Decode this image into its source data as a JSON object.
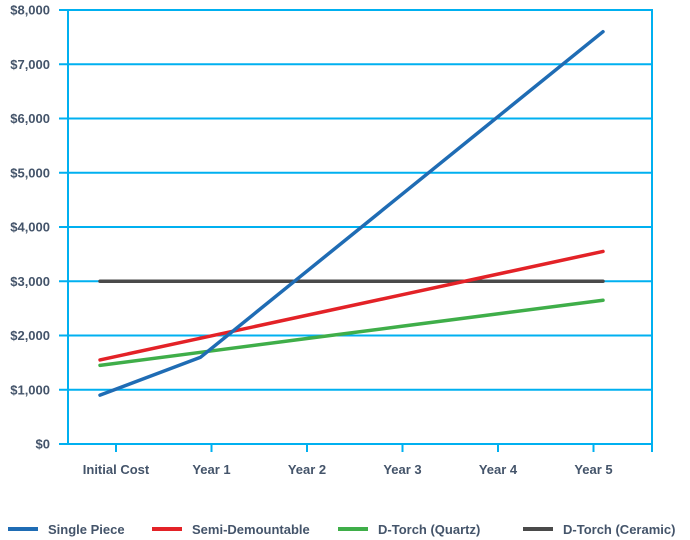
{
  "chart_data": {
    "type": "line",
    "title": "",
    "xlabel": "",
    "ylabel": "",
    "categories": [
      "Initial Cost",
      "Year 1",
      "Year 2",
      "Year 3",
      "Year 4",
      "Year 5"
    ],
    "series": [
      {
        "name": "Single Piece",
        "color": "#1F6CB4",
        "values": [
          900,
          1600,
          3100,
          4600,
          6100,
          7600
        ]
      },
      {
        "name": "Semi-Demountable",
        "color": "#E32227",
        "values": [
          1550,
          1950,
          2350,
          2750,
          3150,
          3550
        ]
      },
      {
        "name": "D-Torch (Quartz)",
        "color": "#3FAE49",
        "values": [
          1450,
          1690,
          1930,
          2170,
          2410,
          2650
        ]
      },
      {
        "name": "D-Torch (Ceramic)",
        "color": "#4A4A4A",
        "values": [
          3000,
          3000,
          3000,
          3000,
          3000,
          3000
        ]
      }
    ],
    "y_axis": {
      "min": 0,
      "max": 8000,
      "step": 1000,
      "tick_labels": [
        "$0",
        "$1,000",
        "$2,000",
        "$3,000",
        "$4,000",
        "$5,000",
        "$6,000",
        "$7,000",
        "$8,000"
      ]
    },
    "grid": true,
    "legend_position": "bottom",
    "colors": {
      "gridline": "#00B0F0",
      "axis": "#00B0F0",
      "label_text": "#44546A",
      "background": "#FFFFFF"
    }
  }
}
